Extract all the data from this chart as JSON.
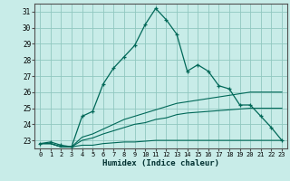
{
  "title": "",
  "xlabel": "Humidex (Indice chaleur)",
  "background_color": "#c8ece8",
  "grid_color": "#90c8c0",
  "line_color": "#006858",
  "xlim": [
    -0.5,
    23.5
  ],
  "ylim": [
    22.5,
    31.5
  ],
  "xticks": [
    0,
    1,
    2,
    3,
    4,
    5,
    6,
    7,
    8,
    9,
    10,
    11,
    12,
    13,
    14,
    15,
    16,
    17,
    18,
    19,
    20,
    21,
    22,
    23
  ],
  "yticks": [
    23,
    24,
    25,
    26,
    27,
    28,
    29,
    30,
    31
  ],
  "humidex_main": [
    22.8,
    22.9,
    22.7,
    22.6,
    24.5,
    24.8,
    26.5,
    27.5,
    28.2,
    28.9,
    30.2,
    31.2,
    30.5,
    29.6,
    27.3,
    27.7,
    27.3,
    26.4,
    26.2,
    25.2,
    25.2,
    24.5,
    23.8,
    23.0
  ],
  "line2": [
    22.8,
    22.8,
    22.6,
    22.6,
    23.2,
    23.4,
    23.7,
    24.0,
    24.3,
    24.5,
    24.7,
    24.9,
    25.1,
    25.3,
    25.4,
    25.5,
    25.6,
    25.7,
    25.8,
    25.9,
    26.0,
    26.0,
    26.0,
    26.0
  ],
  "line3": [
    22.8,
    22.8,
    22.6,
    22.6,
    23.0,
    23.15,
    23.4,
    23.6,
    23.8,
    24.0,
    24.1,
    24.3,
    24.4,
    24.6,
    24.7,
    24.75,
    24.8,
    24.85,
    24.9,
    24.95,
    25.0,
    25.0,
    25.0,
    25.0
  ],
  "line4": [
    22.8,
    22.8,
    22.6,
    22.6,
    22.7,
    22.7,
    22.8,
    22.85,
    22.9,
    22.9,
    22.95,
    23.0,
    23.0,
    23.0,
    23.0,
    23.0,
    23.0,
    23.0,
    23.0,
    23.0,
    23.0,
    23.0,
    23.0,
    23.0
  ]
}
